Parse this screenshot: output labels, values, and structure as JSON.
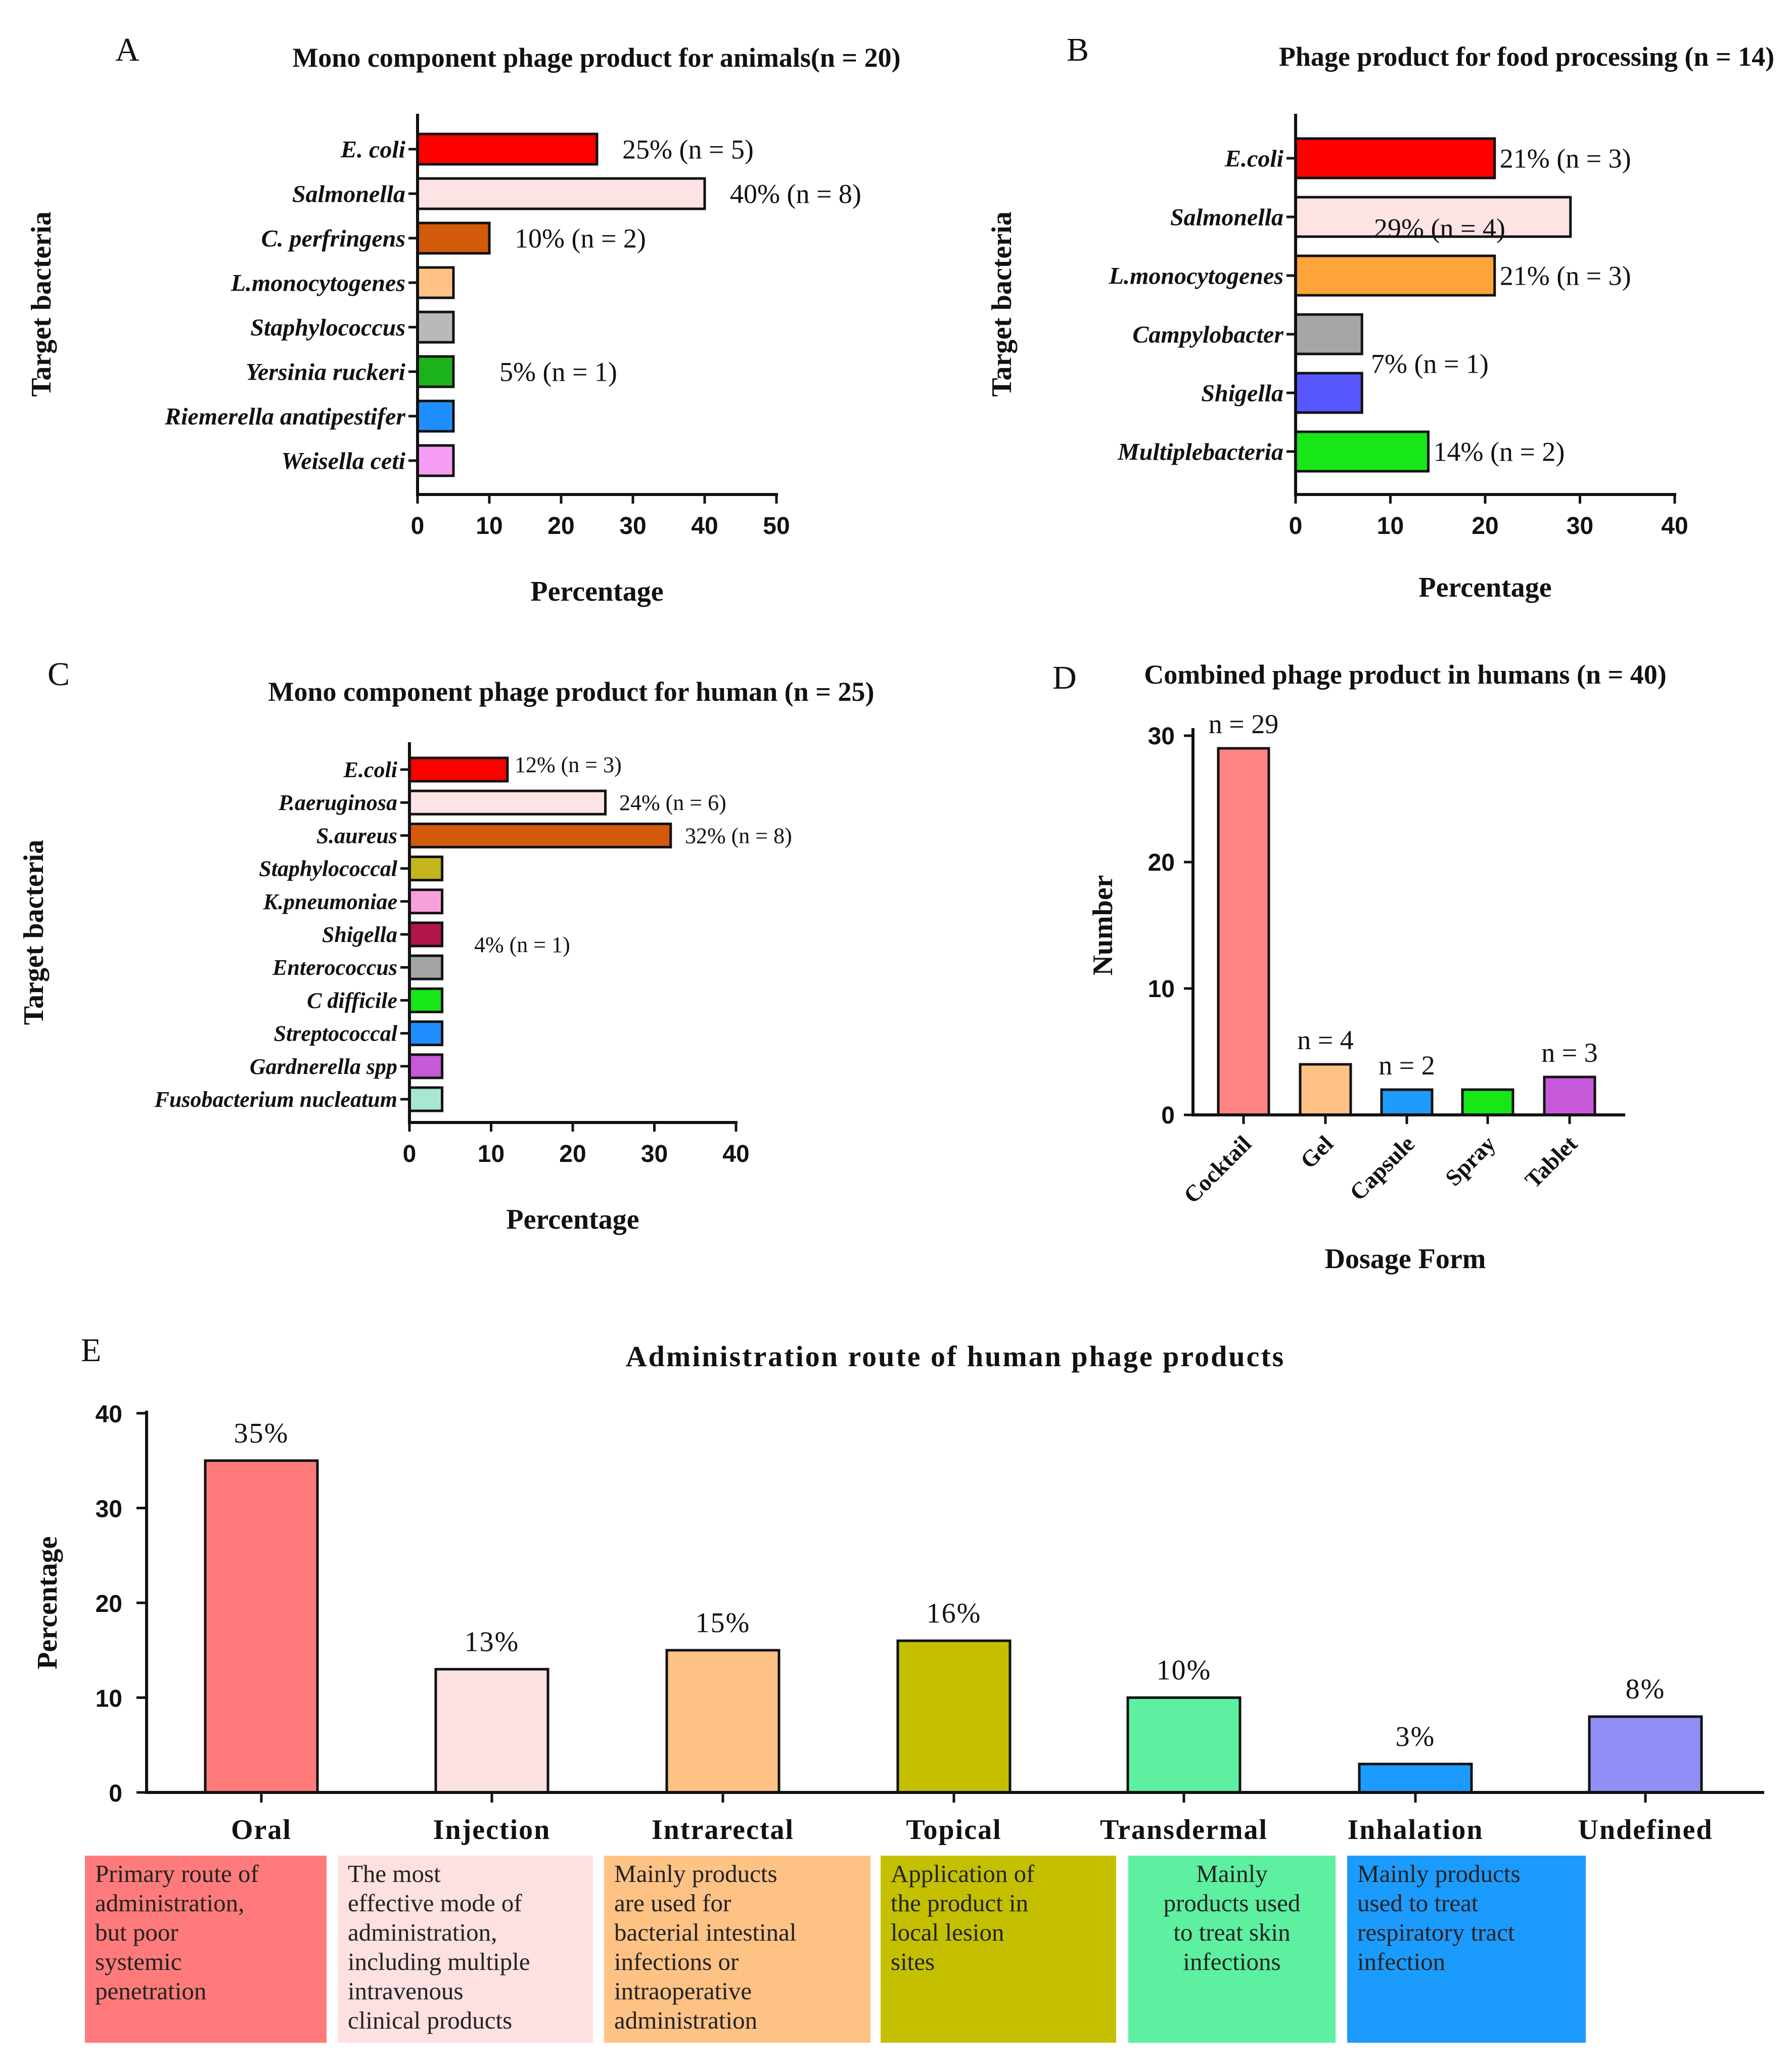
{
  "chart_data": [
    {
      "id": "A",
      "panel": "A",
      "type": "bar",
      "orientation": "horizontal",
      "title": "Mono component phage product for animals(n = 20)",
      "xlabel": "Percentage",
      "ylabel": "Target bacteria",
      "xlim": [
        0,
        50
      ],
      "xticks": [
        0,
        10,
        20,
        30,
        40,
        50
      ],
      "categories": [
        "E. coli",
        "Salmonella",
        "C. perfringens",
        "L.monocytogenes",
        "Staphylococcus",
        "Yersinia ruckeri",
        "Riemerella anatipestifer",
        "Weisella ceti"
      ],
      "values": [
        25,
        40,
        10,
        5,
        5,
        5,
        5,
        5
      ],
      "colors": [
        "#ff0000",
        "#fde3e3",
        "#d25a0a",
        "#ffc285",
        "#b9b9b9",
        "#1bb31b",
        "#1f8fff",
        "#f49df2"
      ],
      "annotations": [
        {
          "text": "25% (n = 5)",
          "category": "E. coli",
          "value": 25
        },
        {
          "text": "40% (n = 8)",
          "category": "Salmonella",
          "value": 40
        },
        {
          "text": "10% (n = 2)",
          "category": "C. perfringens",
          "value": 10
        },
        {
          "text": "5% (n = 1)",
          "category": "Yersinia ruckeri",
          "value": 5
        }
      ]
    },
    {
      "id": "B",
      "panel": "B",
      "type": "bar",
      "orientation": "horizontal",
      "title": "Phage product for food processing (n = 14)",
      "xlabel": "Percentage",
      "ylabel": "Target bacteria",
      "xlim": [
        0,
        40
      ],
      "xticks": [
        0,
        10,
        20,
        30,
        40
      ],
      "categories": [
        "E.coli",
        "Salmonella",
        "L.monocytogenes",
        "Campylobacter",
        "Shigella",
        "Multiplebacteria"
      ],
      "values": [
        21,
        29,
        21,
        7,
        7,
        14
      ],
      "colors": [
        "#ff0000",
        "#fde3e3",
        "#ffa43a",
        "#a6a6a6",
        "#5757ff",
        "#17e617"
      ],
      "annotations": [
        {
          "text": "21% (n = 3)",
          "category": "E.coli",
          "value": 21
        },
        {
          "text": "29% (n = 4)",
          "category": "Salmonella",
          "value": 29
        },
        {
          "text": "21% (n = 3)",
          "category": "L.monocytogenes",
          "value": 21
        },
        {
          "text": "7% (n = 1)",
          "category": "Campylobacter",
          "value": 7
        },
        {
          "text": "14% (n = 2)",
          "category": "Multiplebacteria",
          "value": 14
        }
      ]
    },
    {
      "id": "C",
      "panel": "C",
      "type": "bar",
      "orientation": "horizontal",
      "title": "Mono  component phage product for human (n = 25)",
      "xlabel": "Percentage",
      "ylabel": "Target bacteria",
      "xlim": [
        0,
        40
      ],
      "xticks": [
        0,
        10,
        20,
        30,
        40
      ],
      "categories": [
        "E.coli",
        "P.aeruginosa",
        "S.aureus",
        "Staphylococcal",
        "K.pneumoniae",
        "Shigella",
        "Enterococcus",
        "C difficile",
        "Streptococcal",
        "Gardnerella spp",
        "Fusobacterium nucleatum"
      ],
      "values": [
        12,
        24,
        32,
        4,
        4,
        4,
        4,
        4,
        4,
        4,
        4
      ],
      "colors": [
        "#ff0000",
        "#fde3e3",
        "#d25a0a",
        "#c4b51c",
        "#f7a0dc",
        "#b1154c",
        "#a3a3a3",
        "#17e617",
        "#1f8fff",
        "#c65ad8",
        "#a9e7d3"
      ],
      "annotations": [
        {
          "text": "12% (n = 3)",
          "category": "E.coli",
          "value": 12
        },
        {
          "text": "24% (n = 6)",
          "category": "P.aeruginosa",
          "value": 24
        },
        {
          "text": "32% (n = 8)",
          "category": "S.aureus",
          "value": 32
        },
        {
          "text": "4% (n = 1)",
          "category": "Shigella",
          "value": 4
        }
      ]
    },
    {
      "id": "D",
      "panel": "D",
      "type": "bar",
      "orientation": "vertical",
      "title": "Combined phage product in humans (n = 40)",
      "xlabel": "Dosage Form",
      "ylabel": "Number",
      "ylim": [
        0,
        30
      ],
      "yticks": [
        0,
        10,
        20,
        30
      ],
      "categories": [
        "Cocktail",
        "Gel",
        "Capsule",
        "Spray",
        "Tablet"
      ],
      "values": [
        29,
        4,
        2,
        2,
        3
      ],
      "colors": [
        "#ff8585",
        "#ffc285",
        "#1f9bff",
        "#17e617",
        "#c65ad8"
      ],
      "annotations": [
        "n = 29",
        "n = 4",
        "n = 2",
        "",
        "n = 3"
      ]
    },
    {
      "id": "E",
      "panel": "E",
      "type": "bar",
      "orientation": "vertical",
      "title": "Administration route of human phage products",
      "xlabel": "",
      "ylabel": "Percentage",
      "ylim": [
        0,
        40
      ],
      "yticks": [
        0,
        10,
        20,
        30,
        40
      ],
      "categories": [
        "Oral",
        "Injection",
        "Intrarectal",
        "Topical",
        "Transdermal",
        "Inhalation",
        "Undefined"
      ],
      "values": [
        35,
        13,
        15,
        16,
        10,
        3,
        8
      ],
      "colors": [
        "#ff7b7b",
        "#fde0e0",
        "#ffc285",
        "#c4c000",
        "#5cf0a0",
        "#1c9bff",
        "#8f8ff5"
      ],
      "annotations": [
        "35%",
        "13%",
        "15%",
        "16%",
        "10%",
        "3%",
        "8%"
      ],
      "descriptions": [
        {
          "text": [
            "Primary route of",
            "administration,",
            "but poor",
            "systemic",
            "penetration"
          ],
          "color": "#ff7b7b"
        },
        {
          "text": [
            "The most",
            "effective mode of",
            "administration,",
            "including multiple",
            "intravenous",
            "clinical products"
          ],
          "color": "#fde0e0"
        },
        {
          "text": [
            "Mainly products",
            "are used for",
            "bacterial intestinal",
            "infections or",
            "intraoperative",
            "administration"
          ],
          "color": "#ffc285"
        },
        {
          "text": [
            "Application of",
            "the product in",
            "local lesion",
            "sites"
          ],
          "color": "#c4c000"
        },
        {
          "text": [
            "Mainly",
            "products used",
            "to treat skin",
            "infections"
          ],
          "color": "#5cf0a0"
        },
        {
          "text": [
            "Mainly products",
            "used to treat",
            "respiratory  tract",
            "infection"
          ],
          "color": "#1c9bff"
        }
      ]
    }
  ]
}
